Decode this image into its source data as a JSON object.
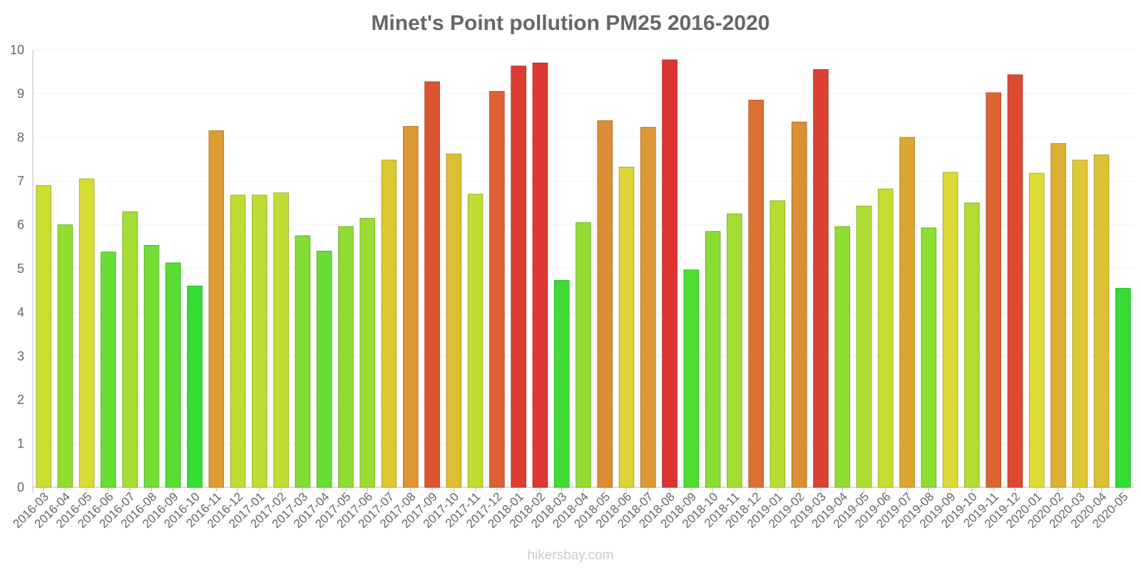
{
  "chart_data": {
    "type": "bar",
    "title": "Minet's Point pollution PM25 2016-2020",
    "xlabel": "",
    "ylabel": "",
    "ylim": [
      0,
      10
    ],
    "yticks": [
      0,
      1,
      2,
      3,
      4,
      5,
      6,
      7,
      8,
      9,
      10
    ],
    "categories": [
      "2016-03",
      "2016-04",
      "2016-05",
      "2016-06",
      "2016-07",
      "2016-08",
      "2016-09",
      "2016-10",
      "2016-11",
      "2016-12",
      "2017-01",
      "2017-02",
      "2017-03",
      "2017-04",
      "2017-05",
      "2017-06",
      "2017-07",
      "2017-08",
      "2017-09",
      "2017-10",
      "2017-11",
      "2017-12",
      "2018-01",
      "2018-02",
      "2018-03",
      "2018-04",
      "2018-05",
      "2018-06",
      "2018-07",
      "2018-08",
      "2018-09",
      "2018-10",
      "2018-11",
      "2018-12",
      "2019-01",
      "2019-02",
      "2019-03",
      "2019-04",
      "2019-05",
      "2019-06",
      "2019-07",
      "2019-08",
      "2019-09",
      "2019-10",
      "2019-11",
      "2019-12",
      "2020-01",
      "2020-02",
      "2020-03",
      "2020-04",
      "2020-05"
    ],
    "values": [
      6.9,
      6.0,
      7.05,
      5.38,
      6.3,
      5.53,
      5.13,
      4.6,
      8.15,
      6.68,
      6.68,
      6.73,
      5.75,
      5.4,
      5.96,
      6.15,
      7.48,
      8.25,
      9.27,
      7.62,
      6.7,
      9.05,
      9.63,
      9.7,
      4.73,
      6.05,
      8.38,
      7.32,
      8.23,
      9.77,
      4.97,
      5.85,
      6.25,
      8.85,
      6.55,
      8.35,
      9.55,
      5.96,
      6.43,
      6.82,
      8.0,
      5.93,
      7.2,
      6.5,
      9.02,
      9.43,
      7.18,
      7.86,
      7.48,
      7.6,
      4.55
    ],
    "grid": true,
    "legend": "none"
  },
  "watermark": "hikersbay.com",
  "colors": {
    "low": "#33dd33",
    "high": "#dd3333",
    "text": "#666666",
    "grid": "#f2f2f2",
    "axis": "#bbbbbb"
  }
}
